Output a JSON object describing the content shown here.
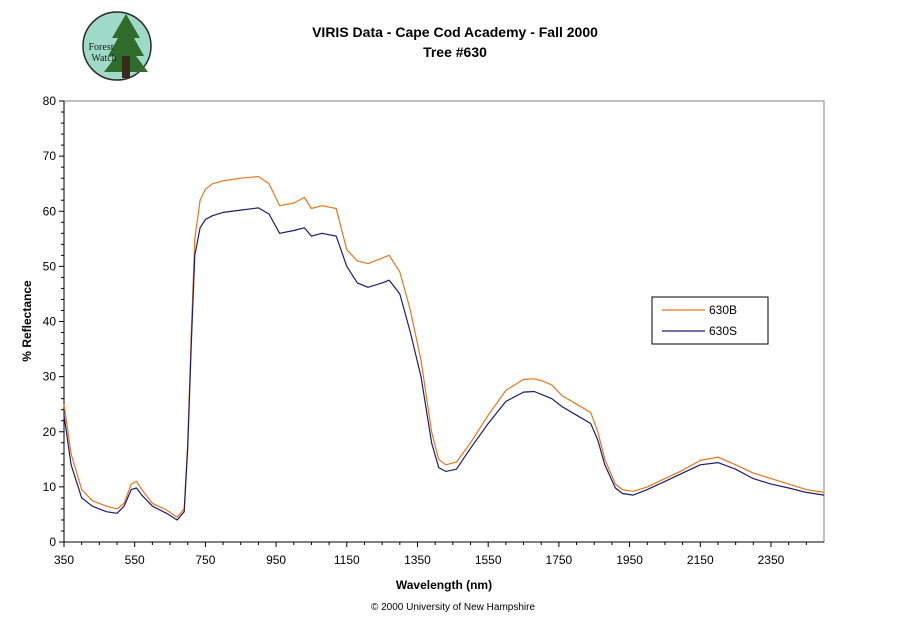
{
  "logo": {
    "line1": "Forest",
    "line2": "Watch"
  },
  "footer": "© 2000 University of New Hampshire",
  "chart_data": {
    "type": "line",
    "title": "VIRIS Data - Cape Cod Academy - Fall 2000",
    "subtitle": "Tree #630",
    "xlabel": "Wavelength (nm)",
    "ylabel": "% Reflectance",
    "xlim": [
      350,
      2500
    ],
    "ylim": [
      0,
      80
    ],
    "xticks": [
      350,
      550,
      750,
      950,
      1150,
      1350,
      1550,
      1750,
      1950,
      2150,
      2350
    ],
    "yticks": [
      0,
      10,
      20,
      30,
      40,
      50,
      60,
      70,
      80
    ],
    "grid": false,
    "legend": "right",
    "series": [
      {
        "name": "630B",
        "color": "#e8761c",
        "x": [
          350,
          370,
          400,
          430,
          470,
          500,
          520,
          540,
          555,
          570,
          600,
          640,
          670,
          690,
          700,
          710,
          720,
          735,
          750,
          770,
          800,
          850,
          900,
          930,
          960,
          1000,
          1030,
          1050,
          1080,
          1120,
          1150,
          1180,
          1210,
          1250,
          1270,
          1300,
          1330,
          1360,
          1390,
          1410,
          1430,
          1460,
          1500,
          1550,
          1600,
          1650,
          1680,
          1700,
          1730,
          1760,
          1800,
          1840,
          1860,
          1880,
          1910,
          1930,
          1960,
          2000,
          2050,
          2100,
          2150,
          2200,
          2250,
          2300,
          2350,
          2400,
          2450,
          2500
        ],
        "y": [
          25,
          16,
          9.5,
          7.5,
          6.5,
          6,
          7,
          10.5,
          11,
          9.5,
          7,
          5.8,
          4.5,
          6,
          18,
          38,
          55,
          62,
          64,
          65,
          65.5,
          66,
          66.3,
          65,
          61,
          61.5,
          62.5,
          60.5,
          61,
          60.5,
          53,
          51,
          50.5,
          51.5,
          52,
          49,
          42,
          33,
          20,
          15,
          14,
          14.5,
          18,
          23,
          27.5,
          29.5,
          29.6,
          29.3,
          28.5,
          26.5,
          25,
          23.5,
          20,
          15,
          10.5,
          9.5,
          9.2,
          10,
          11.5,
          13,
          14.8,
          15.4,
          14,
          12.5,
          11.5,
          10.5,
          9.5,
          9
        ]
      },
      {
        "name": "630S",
        "color": "#1c1c6e",
        "x": [
          350,
          370,
          400,
          430,
          470,
          500,
          520,
          540,
          555,
          570,
          600,
          640,
          670,
          690,
          700,
          710,
          720,
          735,
          750,
          770,
          800,
          850,
          900,
          930,
          960,
          1000,
          1030,
          1050,
          1080,
          1120,
          1150,
          1180,
          1210,
          1250,
          1270,
          1300,
          1330,
          1360,
          1390,
          1410,
          1430,
          1460,
          1500,
          1550,
          1600,
          1650,
          1680,
          1700,
          1730,
          1760,
          1800,
          1840,
          1860,
          1880,
          1910,
          1930,
          1960,
          2000,
          2050,
          2100,
          2150,
          2200,
          2250,
          2300,
          2350,
          2400,
          2450,
          2500
        ],
        "y": [
          23,
          14,
          8,
          6.5,
          5.5,
          5.2,
          6.5,
          9.5,
          9.8,
          8.5,
          6.5,
          5.2,
          4,
          5.5,
          17,
          36,
          52,
          57,
          58.5,
          59.2,
          59.8,
          60.2,
          60.6,
          59.5,
          56,
          56.5,
          57,
          55.5,
          56,
          55.5,
          50,
          47,
          46.2,
          47,
          47.5,
          45,
          38,
          30,
          18,
          13.5,
          12.8,
          13.2,
          17,
          21.5,
          25.5,
          27.2,
          27.3,
          26.8,
          26,
          24.5,
          23,
          21.5,
          18.5,
          14,
          9.8,
          8.8,
          8.5,
          9.5,
          11,
          12.5,
          14,
          14.4,
          13.2,
          11.5,
          10.5,
          9.8,
          9,
          8.5
        ]
      }
    ]
  }
}
